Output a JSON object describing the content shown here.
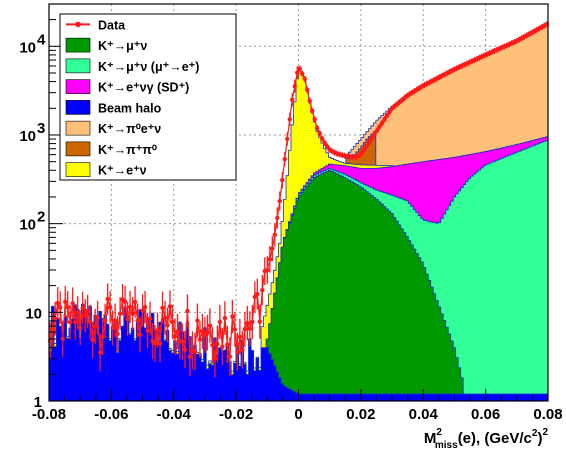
{
  "chart_data": {
    "type": "histogram",
    "xlabel": "M²miss(e), (GeV/c²)²",
    "xlabel_parts": {
      "main": "M",
      "sup": "2",
      "sub": "miss",
      "rest": "(e), (GeV/c",
      "sup2": "2",
      "close": ")",
      "sup3": "2"
    },
    "xlim": [
      -0.08,
      0.08
    ],
    "ylim": [
      1,
      30000
    ],
    "yscale": "log",
    "grid": true,
    "legend_position": "top-left",
    "x_ticks": [
      "-0.08",
      "-0.06",
      "-0.04",
      "-0.02",
      "0",
      "0.02",
      "0.04",
      "0.06",
      "0.08"
    ],
    "x_tick_values": [
      -0.08,
      -0.06,
      -0.04,
      -0.02,
      0,
      0.02,
      0.04,
      0.06,
      0.08
    ],
    "y_ticks": [
      {
        "value": 1,
        "base": "1",
        "exp": ""
      },
      {
        "value": 10,
        "base": "10",
        "exp": ""
      },
      {
        "value": 100,
        "base": "10",
        "exp": "2"
      },
      {
        "value": 1000,
        "base": "10",
        "exp": "3"
      },
      {
        "value": 10000,
        "base": "10",
        "exp": "4"
      }
    ],
    "colors": {
      "data": "#ff1a1a",
      "k_munu": "#009900",
      "k_munu_mu_e": "#33ff99",
      "k_enugamma_sd": "#ff00ff",
      "beam_halo": "#0000ff",
      "k_pi0enu": "#ffc07a",
      "k_pipi0": "#cc6600",
      "k_enu": "#ffff00",
      "outline": "#1030c0"
    },
    "legend": [
      {
        "key": "data",
        "label": "Data",
        "style": "marker"
      },
      {
        "key": "k_munu",
        "label": "K⁺→μ⁺ν",
        "style": "box"
      },
      {
        "key": "k_munu_mu_e",
        "label": "K⁺→μ⁺ν (μ⁺→e⁺)",
        "style": "box"
      },
      {
        "key": "k_enugamma_sd",
        "label": "K⁺→e⁺νγ (SD⁺)",
        "style": "box"
      },
      {
        "key": "beam_halo",
        "label": "Beam halo",
        "style": "box"
      },
      {
        "key": "k_pi0enu",
        "label": "K⁺→π⁰e⁺ν",
        "style": "box"
      },
      {
        "key": "k_pipi0",
        "label": "K⁺→π⁺π⁰",
        "style": "box"
      },
      {
        "key": "k_enu",
        "label": "K⁺→e⁺ν",
        "style": "box"
      }
    ],
    "stack_order": [
      "beam_halo",
      "k_munu",
      "k_munu_mu_e",
      "k_enugamma_sd",
      "k_enu",
      "k_pipi0",
      "k_pi0enu"
    ],
    "series_knots": {
      "k_munu": [
        [
          -0.0105,
          1
        ],
        [
          -0.01,
          5
        ],
        [
          -0.005,
          60
        ],
        [
          0,
          200
        ],
        [
          0.005,
          330
        ],
        [
          0.01,
          400
        ],
        [
          0.015,
          330
        ],
        [
          0.02,
          260
        ],
        [
          0.025,
          190
        ],
        [
          0.03,
          130
        ],
        [
          0.035,
          70
        ],
        [
          0.04,
          35
        ],
        [
          0.045,
          12
        ],
        [
          0.05,
          4
        ],
        [
          0.053,
          1.5
        ]
      ],
      "k_munu_mu_e": [
        [
          -0.01,
          1.5
        ],
        [
          -0.005,
          60
        ],
        [
          0,
          210
        ],
        [
          0.005,
          350
        ],
        [
          0.01,
          420
        ],
        [
          0.015,
          360
        ],
        [
          0.02,
          290
        ],
        [
          0.025,
          240
        ],
        [
          0.03,
          210
        ],
        [
          0.035,
          180
        ],
        [
          0.04,
          110
        ],
        [
          0.045,
          100
        ],
        [
          0.05,
          200
        ],
        [
          0.055,
          330
        ],
        [
          0.06,
          460
        ],
        [
          0.07,
          640
        ],
        [
          0.08,
          880
        ]
      ],
      "k_enugamma_sd": [
        [
          -0.01,
          1.5
        ],
        [
          -0.005,
          60
        ],
        [
          0,
          215
        ],
        [
          0.005,
          370
        ],
        [
          0.01,
          470
        ],
        [
          0.015,
          450
        ],
        [
          0.02,
          420
        ],
        [
          0.025,
          420
        ],
        [
          0.03,
          440
        ],
        [
          0.035,
          470
        ],
        [
          0.04,
          500
        ],
        [
          0.05,
          560
        ],
        [
          0.06,
          650
        ],
        [
          0.07,
          780
        ],
        [
          0.08,
          960
        ]
      ],
      "beam_halo": [
        [
          -0.08,
          8
        ],
        [
          -0.06,
          8
        ],
        [
          -0.04,
          6
        ],
        [
          -0.03,
          5
        ],
        [
          -0.02,
          4
        ],
        [
          -0.015,
          4
        ],
        [
          -0.01,
          4
        ],
        [
          -0.005,
          1.5
        ],
        [
          0,
          1.2
        ],
        [
          0.08,
          1.2
        ]
      ],
      "k_enu": [
        [
          -0.012,
          6
        ],
        [
          -0.01,
          12
        ],
        [
          -0.008,
          25
        ],
        [
          -0.006,
          60
        ],
        [
          -0.004,
          250
        ],
        [
          -0.002,
          1300
        ],
        [
          0,
          5800
        ],
        [
          0.002,
          4200
        ],
        [
          0.004,
          2000
        ],
        [
          0.006,
          1100
        ],
        [
          0.008,
          750
        ],
        [
          0.01,
          560
        ],
        [
          0.012,
          520
        ],
        [
          0.015,
          480
        ],
        [
          0.02,
          460
        ],
        [
          0.03,
          450
        ]
      ],
      "k_pipi0": [
        [
          0.015,
          530
        ],
        [
          0.018,
          600
        ],
        [
          0.02,
          720
        ],
        [
          0.022,
          900
        ],
        [
          0.025,
          1150
        ]
      ],
      "k_pi0enu": [
        [
          0.015,
          560
        ],
        [
          0.02,
          900
        ],
        [
          0.025,
          1450
        ],
        [
          0.03,
          2100
        ],
        [
          0.035,
          2800
        ],
        [
          0.04,
          3600
        ],
        [
          0.05,
          5500
        ],
        [
          0.06,
          8000
        ],
        [
          0.07,
          11500
        ],
        [
          0.08,
          17500
        ]
      ],
      "data": [
        [
          -0.08,
          8
        ],
        [
          -0.06,
          9
        ],
        [
          -0.04,
          8
        ],
        [
          -0.03,
          7
        ],
        [
          -0.02,
          7
        ],
        [
          -0.015,
          8
        ],
        [
          -0.012,
          15
        ],
        [
          -0.01,
          30
        ],
        [
          -0.008,
          60
        ],
        [
          -0.006,
          180
        ],
        [
          -0.004,
          700
        ],
        [
          -0.002,
          2500
        ],
        [
          0,
          6000
        ],
        [
          0.002,
          4300
        ],
        [
          0.004,
          2100
        ],
        [
          0.006,
          1200
        ],
        [
          0.008,
          850
        ],
        [
          0.01,
          680
        ],
        [
          0.012,
          620
        ],
        [
          0.015,
          580
        ],
        [
          0.018,
          560
        ],
        [
          0.02,
          600
        ],
        [
          0.025,
          1100
        ],
        [
          0.03,
          2000
        ],
        [
          0.035,
          2800
        ],
        [
          0.04,
          3600
        ],
        [
          0.05,
          5500
        ],
        [
          0.06,
          8000
        ],
        [
          0.07,
          11500
        ],
        [
          0.08,
          18000
        ]
      ]
    }
  }
}
